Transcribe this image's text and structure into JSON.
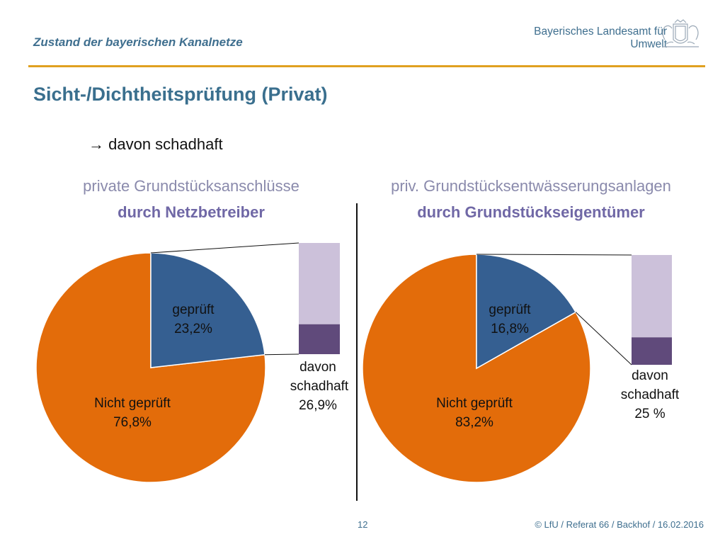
{
  "header": {
    "title": "Zustand der bayerischen Kanalnetze",
    "org_line1": "Bayerisches Landesamt für",
    "org_line2": "Umwelt"
  },
  "slide": {
    "title": "Sicht-/Dichtheitsprüfung (Privat)",
    "bullet": "→ davon schadhaft"
  },
  "colors": {
    "tested": "#355f91",
    "not_tested": "#e36c0a",
    "bar_damaged": "#604a7b",
    "bar_rest": "#ccc1da"
  },
  "footer": {
    "page": "12",
    "copyright": "© LfU / Referat 66 / Backhof / 16.02.2016"
  },
  "chart_data": [
    {
      "type": "pie",
      "subtitle1": "private Grundstücksanschlüsse",
      "subtitle2": "durch Netzbetreiber",
      "slices": [
        {
          "label_line1": "geprüft",
          "label_line2": "23,2%",
          "value": 23.2
        },
        {
          "label_line1": "Nicht geprüft",
          "label_line2": "76,8%",
          "value": 76.8
        }
      ],
      "breakdown_bar": {
        "damaged_percent": 26.9,
        "label_line1": "davon",
        "label_line2": "schadhaft",
        "label_line3": "26,9%"
      }
    },
    {
      "type": "pie",
      "subtitle1": "priv. Grundstücksentwässerungsanlagen",
      "subtitle2": "durch Grundstückseigentümer",
      "slices": [
        {
          "label_line1": "geprüft",
          "label_line2": "16,8%",
          "value": 16.8
        },
        {
          "label_line1": "Nicht geprüft",
          "label_line2": "83,2%",
          "value": 83.2
        }
      ],
      "breakdown_bar": {
        "damaged_percent": 25,
        "label_line1": "davon",
        "label_line2": "schadhaft",
        "label_line3": "25 %"
      }
    }
  ]
}
